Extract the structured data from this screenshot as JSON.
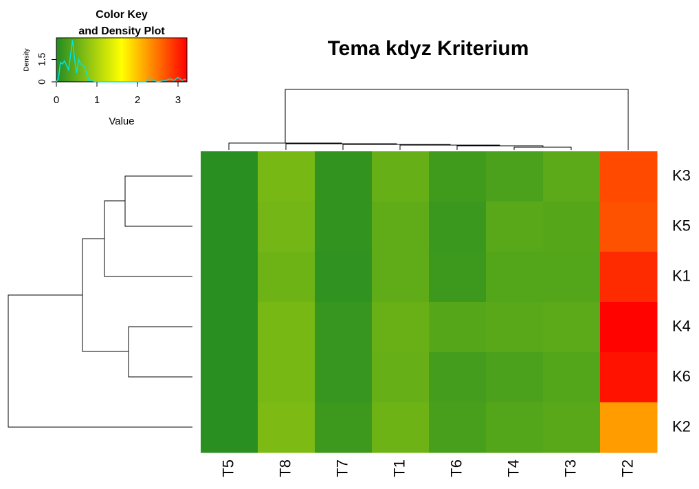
{
  "chart_data": {
    "type": "heatmap",
    "title": "Tema kdyz Kriterium",
    "rows": [
      "K3",
      "K5",
      "K1",
      "K4",
      "K6",
      "K2"
    ],
    "columns": [
      "T5",
      "T8",
      "T7",
      "T1",
      "T6",
      "T4",
      "T3",
      "T2"
    ],
    "values": [
      [
        0.05,
        0.62,
        0.12,
        0.5,
        0.22,
        0.3,
        0.42,
        2.75
      ],
      [
        0.05,
        0.6,
        0.12,
        0.45,
        0.18,
        0.4,
        0.38,
        2.7
      ],
      [
        0.05,
        0.55,
        0.1,
        0.45,
        0.2,
        0.36,
        0.36,
        2.95
      ],
      [
        0.05,
        0.62,
        0.15,
        0.52,
        0.38,
        0.4,
        0.42,
        3.2
      ],
      [
        0.05,
        0.62,
        0.15,
        0.5,
        0.25,
        0.3,
        0.36,
        3.1
      ],
      [
        0.05,
        0.66,
        0.2,
        0.55,
        0.28,
        0.36,
        0.4,
        2.23
      ]
    ],
    "colors": [
      "#228B22",
      "#FFFF00",
      "#FF0000"
    ],
    "key": {
      "title": [
        "Color Key",
        "and Density Plot"
      ],
      "xlabel": "Value",
      "ylabel": "Density",
      "xlim": [
        0,
        3.22
      ],
      "xticks": [
        0,
        1,
        2,
        3
      ],
      "ylim": [
        0,
        2.95
      ],
      "yticks": [
        0,
        1.5
      ],
      "density_color": "#00e5e5",
      "density_x": [
        0,
        0.05,
        0.1,
        0.15,
        0.2,
        0.25,
        0.3,
        0.35,
        0.4,
        0.45,
        0.5,
        0.55,
        0.6,
        0.7,
        0.8,
        1.0,
        2.0,
        2.2,
        2.3,
        2.5,
        2.7,
        2.8,
        2.9,
        3.0,
        3.1,
        3.2
      ],
      "density_y": [
        0,
        0.2,
        1.3,
        1.2,
        1.4,
        1.1,
        0.8,
        1.8,
        2.8,
        1.5,
        0.6,
        1.5,
        1.2,
        1.0,
        0.1,
        0,
        0,
        0,
        0.2,
        0,
        0.1,
        0.2,
        0.1,
        0.3,
        0.1,
        0.2
      ]
    }
  }
}
